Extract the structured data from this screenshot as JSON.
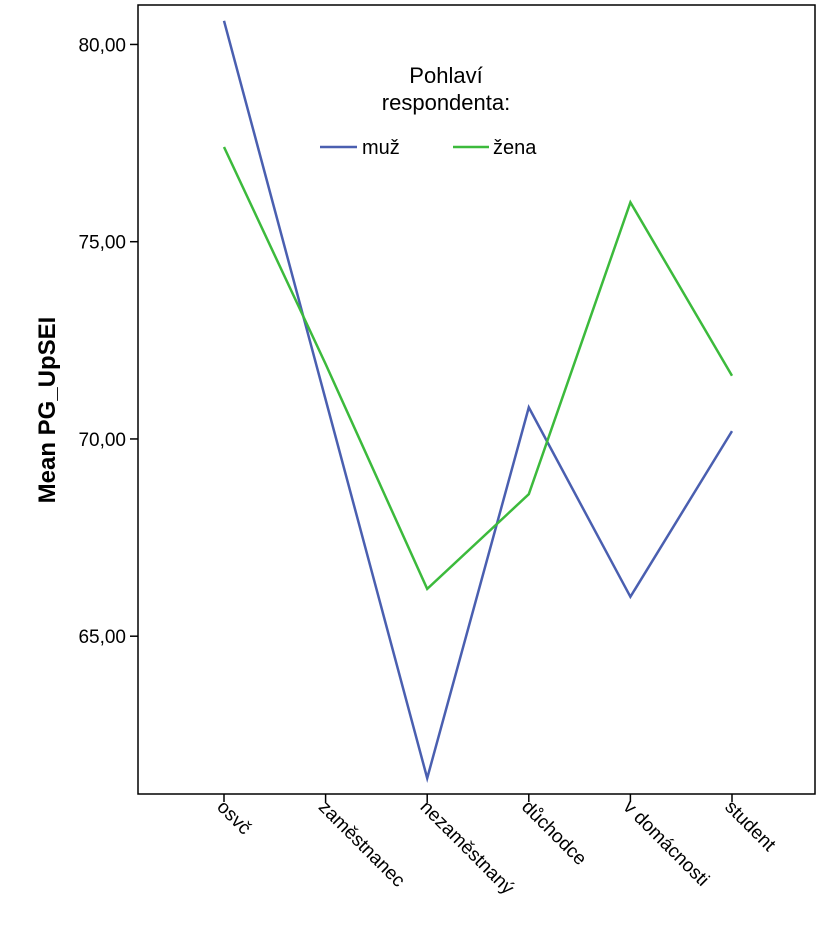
{
  "chart_data": {
    "type": "line",
    "categories": [
      "osvč",
      "zaměstnanec",
      "nezaměstnaný",
      "důchodce",
      "v domácnosti",
      "student"
    ],
    "series": [
      {
        "name": "muž",
        "color": "#4a5fb0",
        "values": [
          80.6,
          71.0,
          61.4,
          70.8,
          66.0,
          70.2
        ]
      },
      {
        "name": "žena",
        "color": "#3cba3c",
        "values": [
          77.4,
          71.9,
          66.2,
          68.6,
          76.0,
          71.6
        ]
      }
    ],
    "title": "",
    "xlabel": "",
    "ylabel": "Mean PG_UpSEI",
    "ylim": [
      61.0,
      81.0
    ],
    "yticks": [
      65.0,
      70.0,
      75.0,
      80.0
    ],
    "ytick_labels": [
      "65,00",
      "70,00",
      "75,00",
      "80,00"
    ],
    "legend": {
      "title_line1": "Pohlaví",
      "title_line2": "respondenta:",
      "placement": "top-center"
    },
    "grid": false
  }
}
